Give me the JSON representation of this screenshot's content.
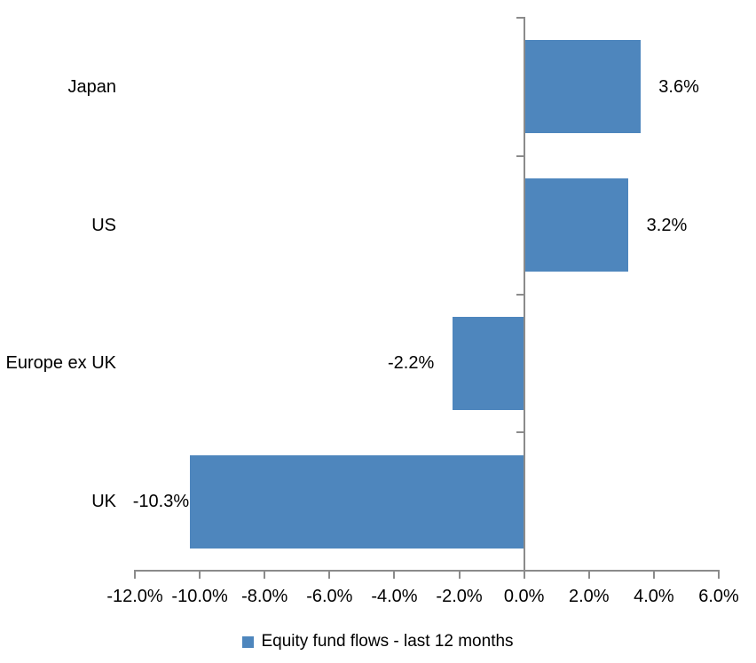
{
  "chart_data": {
    "type": "bar",
    "orientation": "horizontal",
    "title": "",
    "categories": [
      "Japan",
      "US",
      "Europe ex UK",
      "UK"
    ],
    "series": [
      {
        "name": "Equity fund flows - last 12 months",
        "values": [
          3.6,
          3.2,
          -2.2,
          -10.3
        ],
        "data_labels": [
          "3.6%",
          "3.2%",
          "-2.2%",
          "-10.3%"
        ]
      }
    ],
    "xlabel": "",
    "ylabel": "",
    "xlim": [
      -12,
      6
    ],
    "x_tick_step": 2,
    "x_tick_labels": [
      "-12.0%",
      "-10.0%",
      "-8.0%",
      "-6.0%",
      "-4.0%",
      "-2.0%",
      "0.0%",
      "2.0%",
      "4.0%",
      "6.0%"
    ],
    "grid": false,
    "legend_position": "bottom",
    "colors": {
      "bar": "#4E86BD",
      "axis": "#8B8B8B",
      "text": "#000000",
      "background": "#FFFFFF"
    }
  },
  "legend": {
    "label": "Equity fund flows - last 12 months"
  }
}
